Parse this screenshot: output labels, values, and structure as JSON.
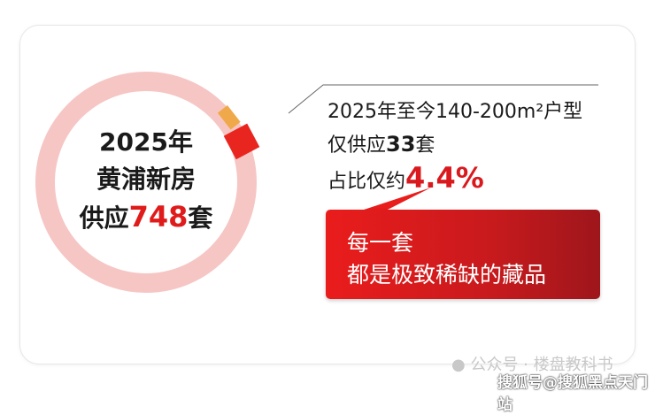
{
  "chart_data": {
    "type": "pie",
    "total": 748,
    "highlight_value": 33,
    "highlight_share_percent": 4.4,
    "colors": {
      "ring": "#f6c6c4",
      "highlight": "#e8261f",
      "accent": "#f0a94a"
    }
  },
  "center": {
    "year": "2025年",
    "line2": "黄浦新房",
    "prefix": "供应",
    "count": "748",
    "suffix": "套"
  },
  "info": {
    "line1": "2025年至今140-200m²户型",
    "line2_prefix": "仅供应",
    "line2_count": "33",
    "line2_suffix": "套",
    "line3_prefix": "占比仅约",
    "line3_percent": "4.4%"
  },
  "callout": {
    "line1": "每一套",
    "line2": "都是极致稀缺的藏品"
  },
  "watermark": {
    "account": "公众号 · 楼盘教科书",
    "source": "搜狐号@搜狐黑点天门站"
  }
}
